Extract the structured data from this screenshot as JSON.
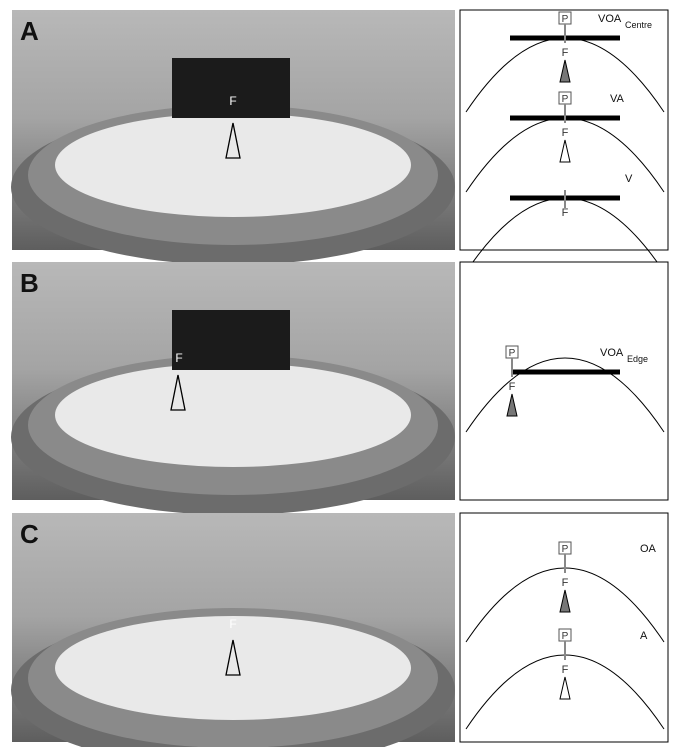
{
  "panels": [
    {
      "label": "A",
      "photo_marker": "F",
      "diagrams": [
        {
          "pole": "P",
          "feeder": "F",
          "condition": "VOA",
          "subscript": "Centre"
        },
        {
          "pole": "P",
          "feeder": "F",
          "condition": "VA"
        },
        {
          "feeder": "F",
          "condition": "V"
        }
      ]
    },
    {
      "label": "B",
      "photo_marker": "F",
      "diagrams": [
        {
          "pole": "P",
          "feeder": "F",
          "condition": "VOA",
          "subscript": "Edge"
        }
      ]
    },
    {
      "label": "C",
      "photo_marker": "F",
      "diagrams": [
        {
          "pole": "P",
          "feeder": "F",
          "condition": "OA"
        },
        {
          "pole": "P",
          "feeder": "F",
          "condition": "A"
        }
      ]
    }
  ]
}
